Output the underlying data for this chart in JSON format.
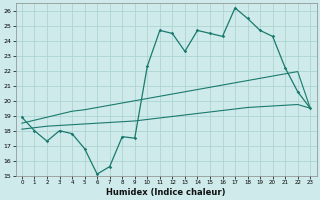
{
  "xlabel": "Humidex (Indice chaleur)",
  "xlim": [
    -0.5,
    23.5
  ],
  "ylim": [
    15,
    26.5
  ],
  "yticks": [
    15,
    16,
    17,
    18,
    19,
    20,
    21,
    22,
    23,
    24,
    25,
    26
  ],
  "xticks": [
    0,
    1,
    2,
    3,
    4,
    5,
    6,
    7,
    8,
    9,
    10,
    11,
    12,
    13,
    14,
    15,
    16,
    17,
    18,
    19,
    20,
    21,
    22,
    23
  ],
  "bg_color": "#ceeaea",
  "grid_color": "#aed4d2",
  "line_color": "#1a7a6e",
  "y_main": [
    18.9,
    18.0,
    17.3,
    18.0,
    17.8,
    16.8,
    15.1,
    15.6,
    17.6,
    17.5,
    22.3,
    24.7,
    24.5,
    23.3,
    24.7,
    24.5,
    24.3,
    26.2,
    25.5,
    24.7,
    24.3,
    22.2,
    20.6,
    19.5
  ],
  "y_lin_steep": [
    18.5,
    18.7,
    18.9,
    19.1,
    19.3,
    19.4,
    19.55,
    19.7,
    19.85,
    20.0,
    20.15,
    20.3,
    20.45,
    20.6,
    20.75,
    20.9,
    21.05,
    21.2,
    21.35,
    21.5,
    21.65,
    21.8,
    21.95,
    19.5
  ],
  "y_lin_flat": [
    18.1,
    18.2,
    18.3,
    18.35,
    18.4,
    18.45,
    18.5,
    18.55,
    18.6,
    18.65,
    18.75,
    18.85,
    18.95,
    19.05,
    19.15,
    19.25,
    19.35,
    19.45,
    19.55,
    19.6,
    19.65,
    19.7,
    19.75,
    19.5
  ]
}
